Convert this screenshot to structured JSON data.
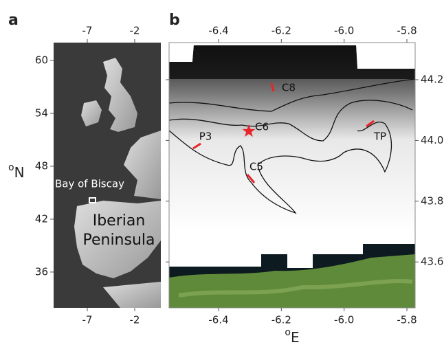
{
  "panels": [
    {
      "label": "a",
      "x_ticks": [
        -7,
        -2
      ],
      "y_ticks": [
        60,
        54,
        48,
        42,
        36
      ],
      "y_axis_label": {
        "sup": "o",
        "text": "N"
      },
      "annotations": [
        "Bay of Biscay",
        "Iberian",
        "Peninsula"
      ]
    },
    {
      "label": "b",
      "x_ticks": [
        -6.4,
        -6.2,
        {
          "value": -6,
          "label": "-6.0"
        },
        -5.8
      ],
      "y_ticks": [
        44.2,
        {
          "value": 44,
          "label": "44.0"
        },
        43.8,
        43.6
      ],
      "x_axis_label": {
        "sup": "o",
        "text": "E"
      },
      "sites": [
        "C8",
        "C6",
        "P3",
        "C5",
        "TP"
      ]
    }
  ]
}
